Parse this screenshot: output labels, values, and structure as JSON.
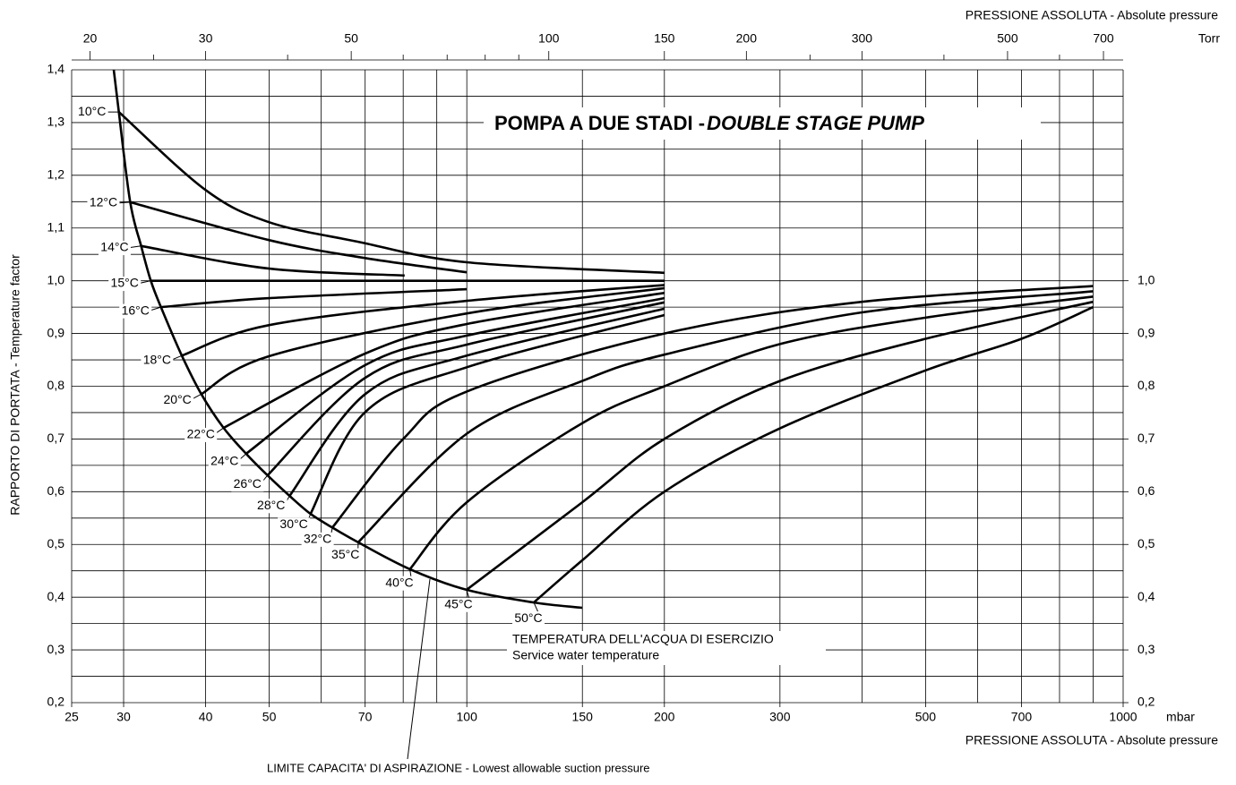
{
  "chart_data": {
    "type": "line",
    "title": "POMPA A DUE STADI - ",
    "title_italic": "DOUBLE STAGE PUMP",
    "x_label": "PRESSIONE ASSOLUTA - Absolute pressure",
    "x_unit": "mbar",
    "x2_label": "PRESSIONE ASSOLUTA - Absolute pressure",
    "x2_unit": "Torr",
    "y_label": "RAPPORTO DI PORTATA - Temperature factor",
    "annotations": [
      "TEMPERATURA DELL'ACQUA DI ESERCIZIO",
      "Service water temperature",
      "LIMITE CAPACITA' DI ASPIRAZIONE - Lowest allowable suction pressure"
    ],
    "xscale": "log",
    "x2scale": "log",
    "grid": true,
    "xlim": [
      25,
      1000
    ],
    "xticks": [
      25,
      30,
      40,
      50,
      70,
      100,
      150,
      200,
      300,
      500,
      700,
      1000
    ],
    "x_minor_ticks": [
      60,
      80,
      90,
      400,
      600,
      800,
      900
    ],
    "x2lim": [
      18.75,
      750.06
    ],
    "x2ticks": [
      20,
      30,
      50,
      100,
      150,
      200,
      300,
      500,
      700
    ],
    "x2_minor_ticks": [
      25,
      40,
      60,
      70,
      80,
      90,
      250,
      400,
      600
    ],
    "ylim": [
      0.2,
      1.4
    ],
    "yticks": [
      {
        "value": 0.2,
        "label": "0,2"
      },
      {
        "value": 0.3,
        "label": "0,3"
      },
      {
        "value": 0.4,
        "label": "0,4"
      },
      {
        "value": 0.5,
        "label": "0,5"
      },
      {
        "value": 0.6,
        "label": "0,6"
      },
      {
        "value": 0.7,
        "label": "0,7"
      },
      {
        "value": 0.8,
        "label": "0,8"
      },
      {
        "value": 0.9,
        "label": "0,9"
      },
      {
        "value": 1.0,
        "label": "1,0"
      },
      {
        "value": 1.1,
        "label": "1,1"
      },
      {
        "value": 1.2,
        "label": "1,2"
      },
      {
        "value": 1.3,
        "label": "1,3"
      },
      {
        "value": 1.4,
        "label": "1,4"
      }
    ],
    "y_minor_ticks": [
      0.25,
      0.35,
      0.45,
      0.55,
      0.65,
      0.75,
      0.85,
      0.95,
      1.05,
      1.15,
      1.25,
      1.35
    ],
    "y2lim": [
      0.2,
      1.4
    ],
    "y2ticks": [
      {
        "value": 0.2,
        "label": "0,2"
      },
      {
        "value": 0.3,
        "label": "0,3"
      },
      {
        "value": 0.4,
        "label": "0,4"
      },
      {
        "value": 0.5,
        "label": "0,5"
      },
      {
        "value": 0.6,
        "label": "0,6"
      },
      {
        "value": 0.7,
        "label": "0,7"
      },
      {
        "value": 0.8,
        "label": "0,8"
      },
      {
        "value": 0.9,
        "label": "0,9"
      },
      {
        "value": 1.0,
        "label": "1,0"
      }
    ],
    "limit": {
      "x": [
        28.98,
        29.5,
        30.7,
        31.9,
        33.0,
        34.2,
        36.8,
        39.4,
        42.6,
        46.1,
        49.7,
        53.7,
        57.8,
        62.4,
        68.3,
        81.9,
        99.9,
        126.5,
        150
      ],
      "values": [
        1.4,
        1.32,
        1.149,
        1.066,
        1.0,
        0.95,
        0.858,
        0.785,
        0.721,
        0.672,
        0.631,
        0.592,
        0.558,
        0.532,
        0.504,
        0.453,
        0.414,
        0.39,
        0.38
      ]
    },
    "series": [
      {
        "name": "10°C",
        "color": "#000000",
        "x": [
          29.5,
          40,
          50,
          68.3,
          100,
          200
        ],
        "values": [
          1.32,
          1.172,
          1.111,
          1.074,
          1.035,
          1.015
        ]
      },
      {
        "name": "12°C",
        "color": "#000000",
        "x": [
          30.7,
          50,
          70,
          100
        ],
        "values": [
          1.149,
          1.077,
          1.043,
          1.016
        ]
      },
      {
        "name": "14°C",
        "color": "#000000",
        "x": [
          31.9,
          50,
          80.4
        ],
        "values": [
          1.066,
          1.023,
          1.01
        ]
      },
      {
        "name": "15°C",
        "color": "#000000",
        "x": [
          33.0,
          200
        ],
        "values": [
          1.0,
          1.0
        ]
      },
      {
        "name": "16°C",
        "color": "#000000",
        "x": [
          34.2,
          50,
          100
        ],
        "values": [
          0.95,
          0.967,
          0.984
        ]
      },
      {
        "name": "18°C",
        "color": "#000000",
        "x": [
          36.8,
          50,
          100,
          200
        ],
        "values": [
          0.858,
          0.916,
          0.962,
          0.992
        ]
      },
      {
        "name": "20°C",
        "color": "#000000",
        "x": [
          39.4,
          50,
          100,
          200
        ],
        "values": [
          0.785,
          0.857,
          0.938,
          0.986
        ]
      },
      {
        "name": "22°C",
        "color": "#000000",
        "x": [
          42.6,
          70,
          100,
          200
        ],
        "values": [
          0.721,
          0.862,
          0.918,
          0.977
        ]
      },
      {
        "name": "24°C",
        "color": "#000000",
        "x": [
          46.1,
          70,
          100,
          200
        ],
        "values": [
          0.672,
          0.84,
          0.896,
          0.967
        ]
      },
      {
        "name": "26°C",
        "color": "#000000",
        "x": [
          49.7,
          70,
          100,
          200
        ],
        "values": [
          0.631,
          0.816,
          0.879,
          0.959
        ]
      },
      {
        "name": "28°C",
        "color": "#000000",
        "x": [
          53.7,
          70,
          100,
          200
        ],
        "values": [
          0.592,
          0.785,
          0.858,
          0.947
        ]
      },
      {
        "name": "30°C",
        "color": "#000000",
        "x": [
          57.8,
          70,
          100,
          200
        ],
        "values": [
          0.558,
          0.751,
          0.836,
          0.935
        ]
      },
      {
        "name": "32°C",
        "color": "#000000",
        "x": [
          62.4,
          80,
          100,
          200,
          400,
          900
        ],
        "values": [
          0.532,
          0.7,
          0.79,
          0.9,
          0.96,
          0.99
        ]
      },
      {
        "name": "35°C",
        "color": "#000000",
        "x": [
          68.3,
          100,
          150,
          200,
          400,
          900
        ],
        "values": [
          0.504,
          0.71,
          0.81,
          0.86,
          0.94,
          0.98
        ]
      },
      {
        "name": "40°C",
        "color": "#000000",
        "x": [
          81.9,
          100,
          150,
          200,
          300,
          500,
          900
        ],
        "values": [
          0.453,
          0.58,
          0.73,
          0.8,
          0.88,
          0.93,
          0.97
        ]
      },
      {
        "name": "45°C",
        "color": "#000000",
        "x": [
          99.9,
          150,
          200,
          300,
          500,
          900
        ],
        "values": [
          0.414,
          0.58,
          0.7,
          0.81,
          0.89,
          0.96
        ]
      },
      {
        "name": "50°C",
        "color": "#000000",
        "x": [
          126.5,
          150,
          200,
          300,
          500,
          700,
          900
        ],
        "values": [
          0.39,
          0.47,
          0.6,
          0.72,
          0.83,
          0.89,
          0.95
        ]
      }
    ]
  }
}
